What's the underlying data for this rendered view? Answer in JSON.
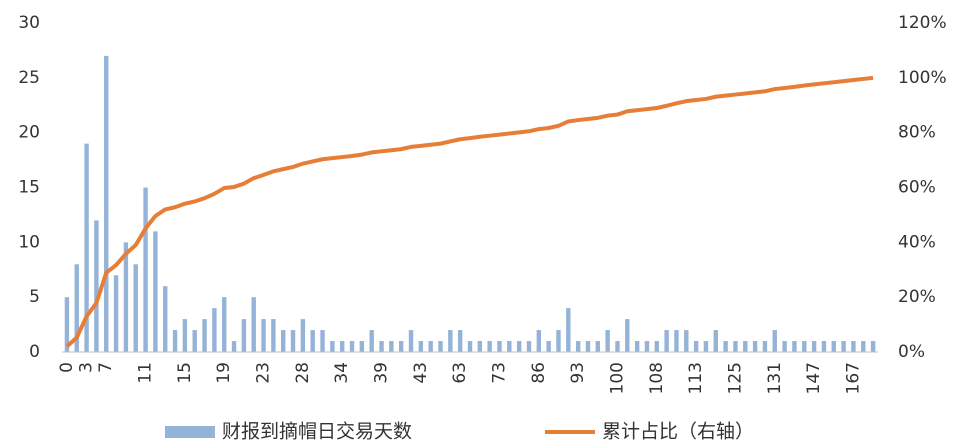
{
  "chart_data": {
    "type": "bar-line",
    "categories": [
      "0",
      null,
      "3",
      null,
      "7",
      null,
      null,
      null,
      "11",
      null,
      null,
      null,
      "15",
      null,
      null,
      null,
      "19",
      null,
      null,
      null,
      "23",
      null,
      null,
      null,
      "28",
      null,
      null,
      null,
      "34",
      null,
      null,
      null,
      "39",
      null,
      null,
      null,
      "43",
      null,
      null,
      null,
      "63",
      null,
      null,
      null,
      "73",
      null,
      null,
      null,
      "86",
      null,
      null,
      null,
      "93",
      null,
      null,
      null,
      "100",
      null,
      null,
      null,
      "108",
      null,
      null,
      null,
      "113",
      null,
      null,
      null,
      "125",
      null,
      null,
      null,
      "131",
      null,
      null,
      null,
      "147",
      null,
      null,
      null,
      "167",
      null,
      null
    ],
    "series": [
      {
        "name": "财报到摘帽日交易天数",
        "type": "bar",
        "color": "#95b3d7",
        "axis": "y",
        "values": [
          5,
          8,
          19,
          12,
          27,
          7,
          10,
          8,
          15,
          11,
          6,
          2,
          3,
          2,
          3,
          4,
          5,
          1,
          3,
          5,
          3,
          3,
          2,
          2,
          3,
          2,
          2,
          1,
          1,
          1,
          1,
          2,
          1,
          1,
          1,
          2,
          1,
          1,
          1,
          2,
          2,
          1,
          1,
          1,
          1,
          1,
          1,
          1,
          2,
          1,
          2,
          4,
          1,
          1,
          1,
          2,
          1,
          3,
          1,
          1,
          1,
          2,
          2,
          2,
          1,
          1,
          2,
          1,
          1,
          1,
          1,
          1,
          2,
          1,
          1,
          1,
          1,
          1,
          1,
          1,
          1,
          1,
          1
        ]
      },
      {
        "name": "累计占比（右轴）",
        "type": "line",
        "color": "#e67e37",
        "axis": "y2",
        "values": [
          2.0,
          5.3,
          13.0,
          17.9,
          28.9,
          31.7,
          35.8,
          39.0,
          45.1,
          49.6,
          52.0,
          52.8,
          54.1,
          54.9,
          56.1,
          57.7,
          59.8,
          60.2,
          61.4,
          63.4,
          64.6,
          65.9,
          66.7,
          67.5,
          68.7,
          69.5,
          70.3,
          70.7,
          71.1,
          71.5,
          72.0,
          72.8,
          73.2,
          73.6,
          74.0,
          74.8,
          75.2,
          75.6,
          76.0,
          76.8,
          77.6,
          78.0,
          78.5,
          78.9,
          79.3,
          79.7,
          80.1,
          80.5,
          81.3,
          81.7,
          82.5,
          84.1,
          84.6,
          85.0,
          85.4,
          86.2,
          86.6,
          87.8,
          88.2,
          88.6,
          89.0,
          89.8,
          90.7,
          91.5,
          91.9,
          92.3,
          93.1,
          93.5,
          93.9,
          94.3,
          94.7,
          95.1,
          95.9,
          96.3,
          96.7,
          97.2,
          97.6,
          98.0,
          98.4,
          98.8,
          99.2,
          99.6,
          100.0
        ]
      }
    ],
    "ylim": [
      0,
      30
    ],
    "yticks": [
      0,
      5,
      10,
      15,
      20,
      25,
      30
    ],
    "y2lim": [
      0,
      120
    ],
    "y2ticks": [
      {
        "value": 0,
        "label": "0%"
      },
      {
        "value": 20,
        "label": "20%"
      },
      {
        "value": 40,
        "label": "40%"
      },
      {
        "value": 60,
        "label": "60%"
      },
      {
        "value": 80,
        "label": "80%"
      },
      {
        "value": 100,
        "label": "100%"
      },
      {
        "value": 120,
        "label": "120%"
      }
    ],
    "grid": false,
    "legend": "bottom"
  }
}
